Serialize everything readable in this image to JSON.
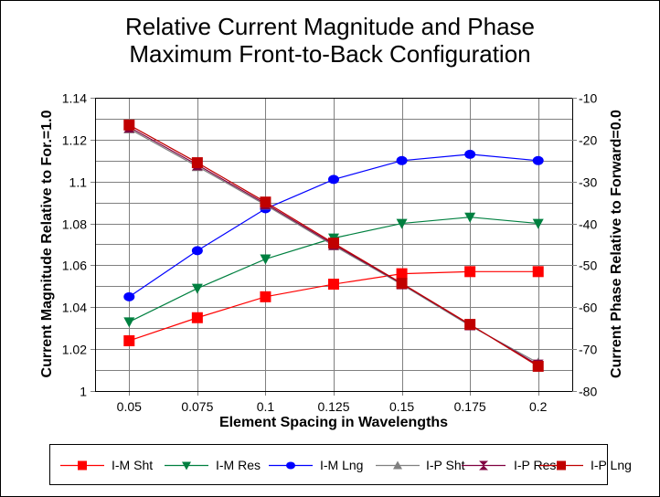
{
  "chart_data": {
    "type": "line",
    "title": "Relative Current Magnitude and Phase",
    "subtitle": "Maximum Front-to-Back Configuration",
    "xlabel": "Element Spacing in Wavelengths",
    "ylabel": "Current Magnitude Relative to For.=1.0",
    "y2label": "Current Phase Relative to Forward=0.0",
    "x": [
      0.05,
      0.075,
      0.1,
      0.125,
      0.15,
      0.175,
      0.2
    ],
    "x_tick_labels": [
      "0.05",
      "0.075",
      "0.1",
      "0.125",
      "0.15",
      "0.175",
      "0.2"
    ],
    "xlim": [
      0.0375,
      0.2125
    ],
    "ylim": [
      1.0,
      1.14
    ],
    "y_ticks": [
      1,
      1.02,
      1.04,
      1.06,
      1.08,
      1.1,
      1.12,
      1.14
    ],
    "y_tick_labels": [
      "1",
      "1.02",
      "1.04",
      "1.06",
      "1.08",
      "1.1",
      "1.12",
      "1.14"
    ],
    "y_minor_step": 0.01,
    "y2lim": [
      -80,
      -10
    ],
    "y2_ticks": [
      -80,
      -70,
      -60,
      -50,
      -40,
      -30,
      -20,
      -10
    ],
    "y2_tick_labels": [
      "-80",
      "-70",
      "-60",
      "-50",
      "-40",
      "-30",
      "-20",
      "-10"
    ],
    "grid": true,
    "legend_position": "bottom",
    "series": [
      {
        "name": "I-M Sht",
        "axis": "left",
        "color": "#ff0000",
        "marker": "square",
        "values": [
          1.024,
          1.035,
          1.045,
          1.051,
          1.056,
          1.057,
          1.057
        ]
      },
      {
        "name": "I-M Res",
        "axis": "left",
        "color": "#008040",
        "marker": "triangle-down",
        "values": [
          1.033,
          1.049,
          1.063,
          1.073,
          1.08,
          1.083,
          1.08
        ]
      },
      {
        "name": "I-M Lng",
        "axis": "left",
        "color": "#0000ff",
        "marker": "circle",
        "values": [
          1.045,
          1.067,
          1.087,
          1.101,
          1.11,
          1.113,
          1.11
        ]
      },
      {
        "name": "I-P Sht",
        "axis": "right",
        "color": "#808080",
        "marker": "triangle-up",
        "values": [
          -17.4,
          -26.4,
          -35.6,
          -45.3,
          -54.6,
          -64.4,
          -73.3
        ]
      },
      {
        "name": "I-P Res",
        "axis": "right",
        "color": "#800040",
        "marker": "bowtie",
        "values": [
          -17.0,
          -26.0,
          -35.3,
          -45.0,
          -54.4,
          -64.2,
          -73.8
        ]
      },
      {
        "name": "I-P Lng",
        "axis": "right",
        "color": "#c00000",
        "marker": "square",
        "values": [
          -16.5,
          -25.5,
          -34.9,
          -44.7,
          -54.3,
          -64.1,
          -74.1
        ]
      }
    ]
  }
}
